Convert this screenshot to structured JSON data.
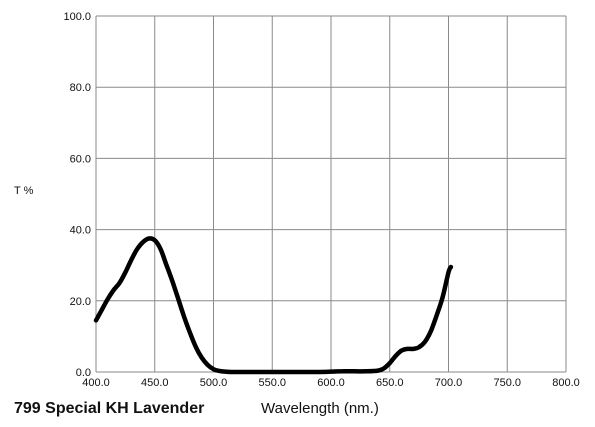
{
  "chart_data": {
    "type": "line",
    "title": "799 Special KH Lavender",
    "xlabel": "Wavelength (nm.)",
    "ylabel": "T %",
    "xlim": [
      400,
      800
    ],
    "ylim": [
      0,
      100
    ],
    "grid": true,
    "x_ticks": [
      "400.0",
      "450.0",
      "500.0",
      "550.0",
      "600.0",
      "650.0",
      "700.0",
      "750.0",
      "800.0"
    ],
    "y_ticks": [
      "0.0",
      "20.0",
      "40.0",
      "60.0",
      "80.0",
      "100.0"
    ],
    "series": [
      {
        "line_color": "#000000",
        "x": [
          400,
          405,
          410,
          415,
          420,
          425,
          430,
          435,
          440,
          445,
          450,
          455,
          460,
          465,
          470,
          475,
          480,
          485,
          490,
          495,
          500,
          505,
          510,
          515,
          520,
          530,
          540,
          550,
          560,
          570,
          580,
          590,
          600,
          610,
          620,
          630,
          640,
          645,
          650,
          655,
          660,
          665,
          670,
          675,
          680,
          685,
          690,
          695,
          700,
          702
        ],
        "y": [
          14.5,
          17.5,
          20.5,
          23,
          25,
          28,
          31.5,
          34.5,
          36.5,
          37.5,
          37,
          34.5,
          30,
          25.5,
          20.5,
          15.5,
          11,
          7,
          4,
          2,
          0.8,
          0.3,
          0.1,
          0,
          0,
          0,
          0,
          0,
          0,
          0,
          0,
          0,
          0.1,
          0.2,
          0.2,
          0.2,
          0.4,
          1,
          2.5,
          4.5,
          6,
          6.5,
          6.5,
          7,
          8.5,
          11.5,
          16,
          21,
          28,
          29.5
        ]
      }
    ]
  }
}
